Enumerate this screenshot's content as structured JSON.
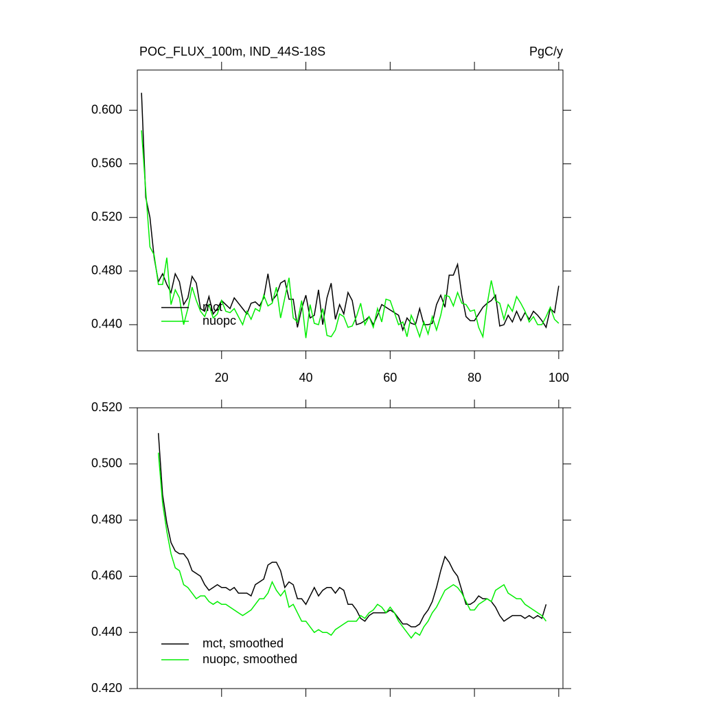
{
  "chart_data": [
    {
      "type": "line",
      "title": "POC_FLUX_100m, IND_44S-18S",
      "units": "PgC/y",
      "x": [
        1,
        2,
        3,
        4,
        5,
        6,
        7,
        8,
        9,
        10,
        11,
        12,
        13,
        14,
        15,
        16,
        17,
        18,
        19,
        20,
        21,
        22,
        23,
        24,
        25,
        26,
        27,
        28,
        29,
        30,
        31,
        32,
        33,
        34,
        35,
        36,
        37,
        38,
        39,
        40,
        41,
        42,
        43,
        44,
        45,
        46,
        47,
        48,
        49,
        50,
        51,
        52,
        53,
        54,
        55,
        56,
        57,
        58,
        59,
        60,
        61,
        62,
        63,
        64,
        65,
        66,
        67,
        68,
        69,
        70,
        71,
        72,
        73,
        74,
        75,
        76,
        77,
        78,
        79,
        80,
        81,
        82,
        83,
        84,
        85,
        86,
        87,
        88,
        89,
        90,
        91,
        92,
        93,
        94,
        95,
        96,
        97,
        98,
        99,
        100
      ],
      "series": [
        {
          "name": "mct",
          "color": "#000000",
          "values": [
            0.613,
            0.535,
            0.52,
            0.49,
            0.472,
            0.478,
            0.47,
            0.464,
            0.478,
            0.472,
            0.455,
            0.46,
            0.476,
            0.471,
            0.452,
            0.45,
            0.461,
            0.448,
            0.452,
            0.458,
            0.455,
            0.452,
            0.46,
            0.456,
            0.452,
            0.448,
            0.456,
            0.457,
            0.454,
            0.46,
            0.478,
            0.458,
            0.462,
            0.471,
            0.473,
            0.459,
            0.459,
            0.438,
            0.452,
            0.462,
            0.445,
            0.447,
            0.466,
            0.44,
            0.46,
            0.471,
            0.444,
            0.455,
            0.448,
            0.464,
            0.458,
            0.44,
            0.441,
            0.443,
            0.446,
            0.44,
            0.447,
            0.455,
            0.453,
            0.451,
            0.449,
            0.447,
            0.436,
            0.445,
            0.441,
            0.44,
            0.452,
            0.44,
            0.44,
            0.441,
            0.455,
            0.462,
            0.453,
            0.477,
            0.477,
            0.485,
            0.462,
            0.446,
            0.443,
            0.443,
            0.448,
            0.453,
            0.456,
            0.458,
            0.462,
            0.439,
            0.44,
            0.447,
            0.442,
            0.45,
            0.443,
            0.449,
            0.444,
            0.45,
            0.447,
            0.443,
            0.438,
            0.452,
            0.449,
            0.469
          ]
        },
        {
          "name": "nuopc",
          "color": "#00ee00",
          "values": [
            0.585,
            0.54,
            0.498,
            0.492,
            0.47,
            0.47,
            0.49,
            0.455,
            0.466,
            0.46,
            0.44,
            0.452,
            0.468,
            0.458,
            0.45,
            0.446,
            0.455,
            0.445,
            0.448,
            0.458,
            0.45,
            0.449,
            0.452,
            0.446,
            0.44,
            0.45,
            0.444,
            0.452,
            0.45,
            0.462,
            0.454,
            0.456,
            0.468,
            0.445,
            0.46,
            0.475,
            0.445,
            0.442,
            0.458,
            0.43,
            0.455,
            0.441,
            0.44,
            0.452,
            0.432,
            0.431,
            0.436,
            0.448,
            0.446,
            0.438,
            0.439,
            0.446,
            0.456,
            0.44,
            0.446,
            0.438,
            0.452,
            0.442,
            0.459,
            0.458,
            0.449,
            0.44,
            0.442,
            0.431,
            0.447,
            0.44,
            0.431,
            0.442,
            0.433,
            0.446,
            0.436,
            0.447,
            0.462,
            0.461,
            0.454,
            0.464,
            0.456,
            0.455,
            0.45,
            0.451,
            0.438,
            0.431,
            0.455,
            0.473,
            0.458,
            0.456,
            0.444,
            0.455,
            0.45,
            0.461,
            0.456,
            0.45,
            0.442,
            0.446,
            0.44,
            0.44,
            0.446,
            0.453,
            0.444,
            0.441
          ]
        }
      ],
      "xlim": [
        0,
        101
      ],
      "xticks": [
        20,
        40,
        60,
        80,
        100
      ],
      "ylim": [
        0.4205,
        0.63
      ],
      "yticks": [
        {
          "value": 0.44,
          "label": "0.440"
        },
        {
          "value": 0.48,
          "label": "0.480"
        },
        {
          "value": 0.52,
          "label": "0.520"
        },
        {
          "value": 0.56,
          "label": "0.560"
        },
        {
          "value": 0.6,
          "label": "0.600"
        }
      ],
      "legend": "lower left"
    },
    {
      "type": "line",
      "x": [
        5,
        6,
        7,
        8,
        9,
        10,
        11,
        12,
        13,
        14,
        15,
        16,
        17,
        18,
        19,
        20,
        21,
        22,
        23,
        24,
        25,
        26,
        27,
        28,
        29,
        30,
        31,
        32,
        33,
        34,
        35,
        36,
        37,
        38,
        39,
        40,
        41,
        42,
        43,
        44,
        45,
        46,
        47,
        48,
        49,
        50,
        51,
        52,
        53,
        54,
        55,
        56,
        57,
        58,
        59,
        60,
        61,
        62,
        63,
        64,
        65,
        66,
        67,
        68,
        69,
        70,
        71,
        72,
        73,
        74,
        75,
        76,
        77,
        78,
        79,
        80,
        81,
        82,
        83,
        84,
        85,
        86,
        87,
        88,
        89,
        90,
        91,
        92,
        93,
        94,
        95,
        96,
        97
      ],
      "series": [
        {
          "name": "mct, smoothed",
          "color": "#000000",
          "values": [
            0.511,
            0.489,
            0.479,
            0.472,
            0.469,
            0.468,
            0.468,
            0.466,
            0.462,
            0.461,
            0.46,
            0.457,
            0.455,
            0.456,
            0.457,
            0.456,
            0.456,
            0.455,
            0.456,
            0.454,
            0.454,
            0.454,
            0.453,
            0.457,
            0.458,
            0.459,
            0.464,
            0.465,
            0.465,
            0.462,
            0.456,
            0.458,
            0.457,
            0.452,
            0.452,
            0.45,
            0.453,
            0.456,
            0.453,
            0.455,
            0.456,
            0.456,
            0.454,
            0.456,
            0.455,
            0.45,
            0.45,
            0.448,
            0.445,
            0.444,
            0.446,
            0.447,
            0.447,
            0.447,
            0.447,
            0.448,
            0.447,
            0.445,
            0.443,
            0.443,
            0.442,
            0.442,
            0.443,
            0.446,
            0.448,
            0.451,
            0.456,
            0.462,
            0.467,
            0.465,
            0.462,
            0.46,
            0.455,
            0.45,
            0.45,
            0.451,
            0.453,
            0.452,
            0.452,
            0.451,
            0.449,
            0.446,
            0.444,
            0.445,
            0.446,
            0.446,
            0.446,
            0.445,
            0.446,
            0.445,
            0.446,
            0.445,
            0.45
          ]
        },
        {
          "name": "nuopc, smoothed",
          "color": "#00ee00",
          "values": [
            0.504,
            0.486,
            0.476,
            0.468,
            0.463,
            0.462,
            0.457,
            0.456,
            0.454,
            0.452,
            0.453,
            0.453,
            0.451,
            0.45,
            0.451,
            0.45,
            0.45,
            0.449,
            0.448,
            0.447,
            0.446,
            0.447,
            0.448,
            0.45,
            0.452,
            0.452,
            0.454,
            0.458,
            0.455,
            0.453,
            0.455,
            0.449,
            0.45,
            0.447,
            0.444,
            0.444,
            0.442,
            0.44,
            0.441,
            0.44,
            0.44,
            0.439,
            0.441,
            0.442,
            0.443,
            0.444,
            0.444,
            0.444,
            0.446,
            0.445,
            0.447,
            0.448,
            0.45,
            0.449,
            0.447,
            0.449,
            0.447,
            0.444,
            0.442,
            0.44,
            0.438,
            0.44,
            0.439,
            0.442,
            0.444,
            0.447,
            0.449,
            0.452,
            0.455,
            0.456,
            0.457,
            0.456,
            0.454,
            0.451,
            0.448,
            0.448,
            0.45,
            0.451,
            0.452,
            0.451,
            0.455,
            0.456,
            0.457,
            0.454,
            0.453,
            0.452,
            0.452,
            0.45,
            0.449,
            0.448,
            0.447,
            0.446,
            0.444
          ]
        }
      ],
      "xlim": [
        0,
        101
      ],
      "xticks": [
        20,
        40,
        60,
        80,
        100
      ],
      "ylim": [
        0.42,
        0.52
      ],
      "yticks": [
        {
          "value": 0.42,
          "label": "0.420"
        },
        {
          "value": 0.44,
          "label": "0.440"
        },
        {
          "value": 0.46,
          "label": "0.460"
        },
        {
          "value": 0.48,
          "label": "0.480"
        },
        {
          "value": 0.5,
          "label": "0.500"
        },
        {
          "value": 0.52,
          "label": "0.520"
        }
      ],
      "legend": "lower left"
    }
  ]
}
